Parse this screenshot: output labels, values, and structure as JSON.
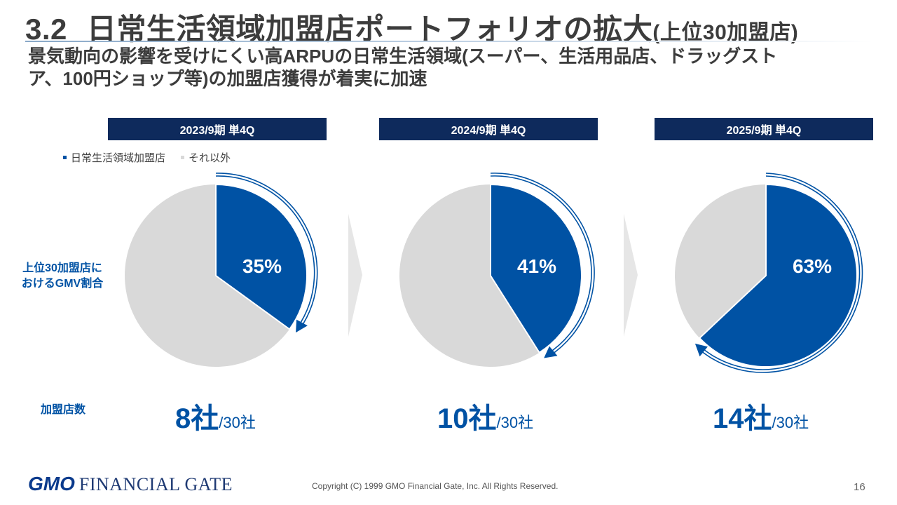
{
  "header": {
    "section_number": "3.2",
    "title_main": "日常生活領域加盟店ポートフォリオの拡大",
    "title_suffix": "(上位30加盟店)",
    "subtitle": "景気動向の影響を受けにくい高ARPUの日常生活領域(スーパー、生活用品店、ドラッグストア、100円ショップ等)の加盟店獲得が着実に加速"
  },
  "legend": {
    "series_a": "日常生活領域加盟店",
    "series_b": "それ以外"
  },
  "row_labels": {
    "gmv_share": "上位30加盟店に\nおけるGMV割合",
    "merchant_count": "加盟店数"
  },
  "colors": {
    "daily_life": "#0052A4",
    "other": "#D9D9D9",
    "header_bar": "#0E2A5C",
    "accent_text": "#0052A4"
  },
  "chart_data": [
    {
      "type": "pie",
      "title": "2023/9期 単4Q",
      "slices": [
        {
          "label": "日常生活領域加盟店",
          "value": 35,
          "display": "35%"
        },
        {
          "label": "それ以外",
          "value": 65
        }
      ],
      "merchant_count": {
        "value": "8社",
        "total": "/30社"
      }
    },
    {
      "type": "pie",
      "title": "2024/9期 単4Q",
      "slices": [
        {
          "label": "日常生活領域加盟店",
          "value": 41,
          "display": "41%"
        },
        {
          "label": "それ以外",
          "value": 59
        }
      ],
      "merchant_count": {
        "value": "10社",
        "total": "/30社"
      }
    },
    {
      "type": "pie",
      "title": "2025/9期 単4Q",
      "slices": [
        {
          "label": "日常生活領域加盟店",
          "value": 63,
          "display": "63%"
        },
        {
          "label": "それ以外",
          "value": 37
        }
      ],
      "merchant_count": {
        "value": "14社",
        "total": "/30社"
      }
    }
  ],
  "footer": {
    "logo_gmo": "GMO",
    "logo_company": "FINANCIAL GATE",
    "copyright": "Copyright (C) 1999 GMO Financial Gate, Inc. All Rights Reserved.",
    "page_number": "16"
  }
}
